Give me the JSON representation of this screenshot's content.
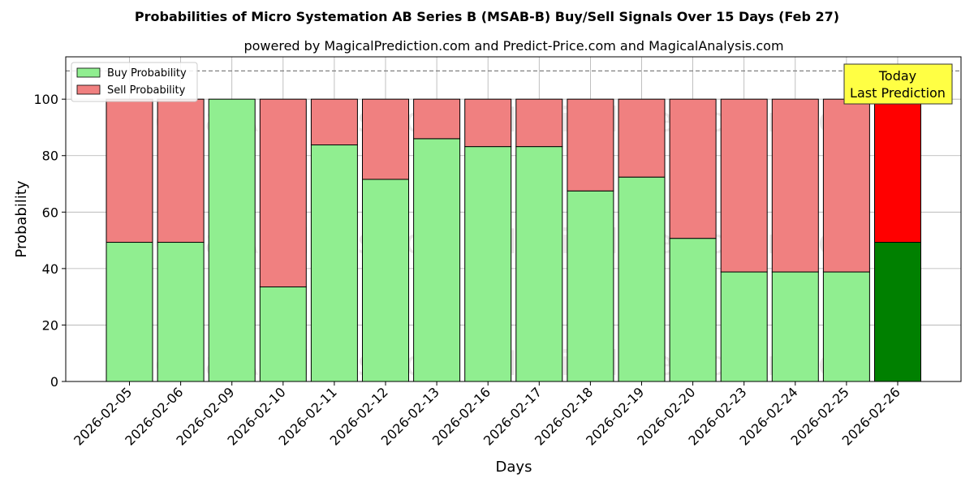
{
  "chart_data": {
    "type": "bar",
    "stacked": true,
    "title": "Probabilities of Micro Systemation AB Series B (MSAB-B) Buy/Sell Signals Over 15 Days (Feb 27)",
    "subtitle": "powered by MagicalPrediction.com and Predict-Price.com and MagicalAnalysis.com",
    "xlabel": "Days",
    "ylabel": "Probability",
    "ylim": [
      0,
      115
    ],
    "yticks": [
      0,
      20,
      40,
      60,
      80,
      100
    ],
    "grid": true,
    "legend_position": "top-left",
    "reference_line": {
      "y": 110,
      "style": "dashed"
    },
    "categories": [
      "2026-02-05",
      "2026-02-06",
      "2026-02-09",
      "2026-02-10",
      "2026-02-11",
      "2026-02-12",
      "2026-02-13",
      "2026-02-16",
      "2026-02-17",
      "2026-02-18",
      "2026-02-19",
      "2026-02-20",
      "2026-02-23",
      "2026-02-24",
      "2026-02-25",
      "2026-02-26"
    ],
    "series": [
      {
        "name": "Buy Probability",
        "color": "#90ee90",
        "highlight_color": "#008000",
        "values": [
          49.3,
          49.3,
          100,
          33.5,
          83.8,
          71.6,
          86.0,
          83.2,
          83.2,
          67.5,
          72.4,
          50.7,
          38.8,
          38.8,
          38.8,
          49.3
        ]
      },
      {
        "name": "Sell Probability",
        "color": "#f08080",
        "highlight_color": "#ff0000",
        "values": [
          50.7,
          50.7,
          0,
          66.5,
          16.2,
          28.4,
          14.0,
          16.8,
          16.8,
          32.5,
          27.6,
          49.3,
          61.2,
          61.2,
          61.2,
          50.7
        ]
      }
    ],
    "highlight_index": 15,
    "annotation": {
      "lines": [
        "Today",
        "Last Prediction"
      ],
      "background": "#ffff44"
    },
    "watermarks": [
      "MagicalAnalysis.com",
      "MagicalPrediction.com"
    ]
  }
}
